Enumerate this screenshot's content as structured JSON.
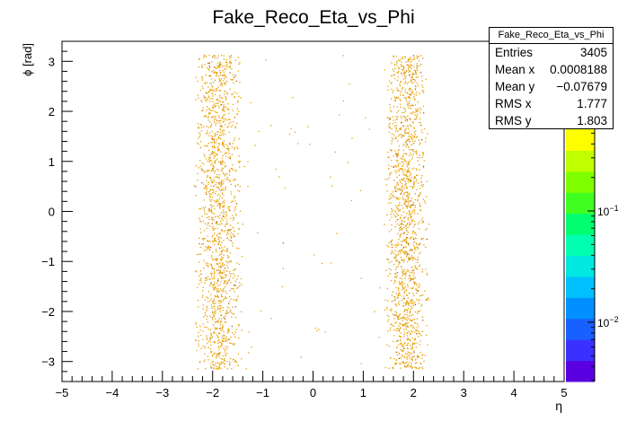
{
  "chart_data": {
    "type": "heatmap",
    "title": "Fake_Reco_Eta_vs_Phi",
    "xlabel": "η",
    "ylabel": "ϕ [rad]",
    "xlim": [
      -5,
      5
    ],
    "ylim": [
      -3.4,
      3.4
    ],
    "x_ticks": [
      "−5",
      "−4",
      "−3",
      "−2",
      "−1",
      "0",
      "1",
      "2",
      "3",
      "4",
      "5"
    ],
    "y_ticks": [
      "−3",
      "−2",
      "−1",
      "0",
      "1",
      "2",
      "3"
    ],
    "z_scale": "log",
    "z_ticks": [
      "10",
      "10"
    ],
    "z_tick_exponents": [
      "−1",
      "−2"
    ],
    "z_tick_values": [
      0.1,
      0.01
    ],
    "clusters": [
      {
        "eta_range": [
          -2.4,
          -1.4
        ],
        "phi_range": [
          -3.14,
          3.14
        ],
        "density": "high"
      },
      {
        "eta_range": [
          1.4,
          2.3
        ],
        "phi_range": [
          -3.14,
          3.14
        ],
        "density": "high"
      },
      {
        "eta_range": [
          -1.4,
          1.4
        ],
        "phi_range": [
          -3.14,
          3.14
        ],
        "density": "sparse"
      }
    ],
    "grid": false,
    "stats": {
      "title": "Fake_Reco_Eta_vs_Phi",
      "rows": [
        {
          "label": "Entries",
          "value": "3405"
        },
        {
          "label": "Mean x",
          "value": "0.0008188"
        },
        {
          "label": "Mean y",
          "value": "−0.07679"
        },
        {
          "label": "RMS x",
          "value": "1.777"
        },
        {
          "label": "RMS y",
          "value": "1.803"
        }
      ]
    }
  },
  "colors": {
    "marker": "#e8a000",
    "marker_dark": "#b35a00",
    "palette": [
      "#5a00e0",
      "#3a30ff",
      "#1860ff",
      "#0090ff",
      "#00c0ff",
      "#00e8e0",
      "#00ffb0",
      "#00ff70",
      "#40ff20",
      "#80ff00",
      "#c0ff00",
      "#ffff00"
    ]
  }
}
